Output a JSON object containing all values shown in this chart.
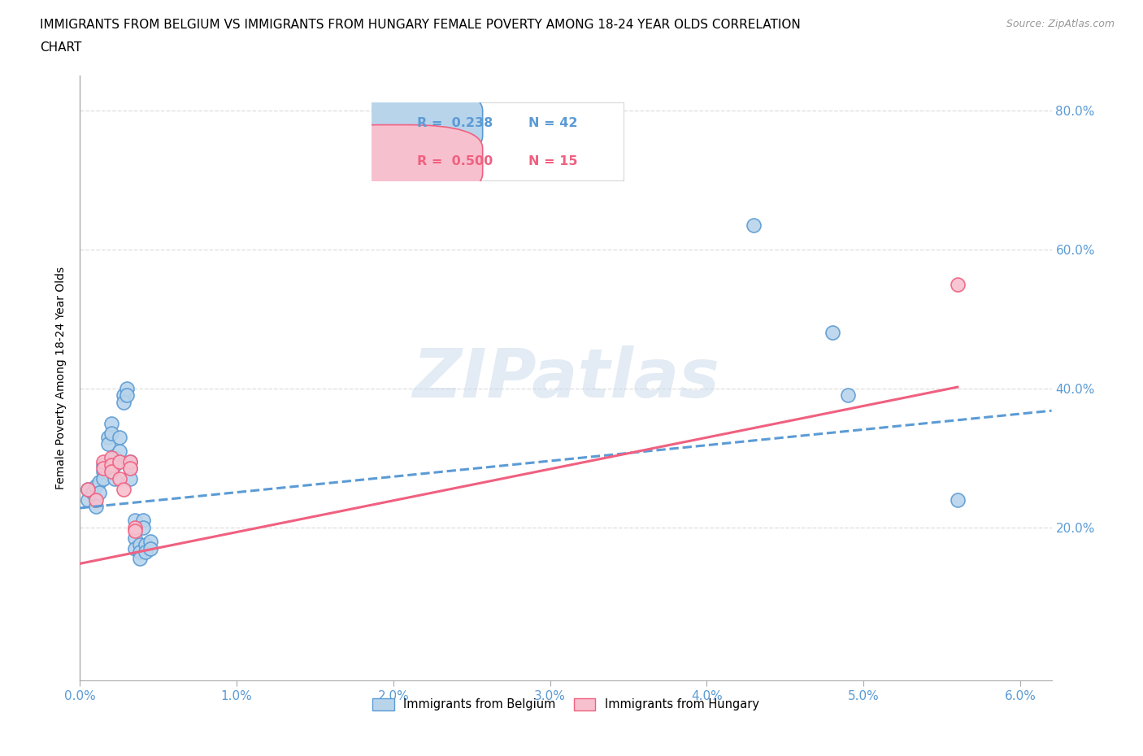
{
  "title_line1": "IMMIGRANTS FROM BELGIUM VS IMMIGRANTS FROM HUNGARY FEMALE POVERTY AMONG 18-24 YEAR OLDS CORRELATION",
  "title_line2": "CHART",
  "source": "Source: ZipAtlas.com",
  "xlabel_ticks": [
    "0.0%",
    "1.0%",
    "2.0%",
    "3.0%",
    "4.0%",
    "5.0%",
    "6.0%"
  ],
  "ylabel_ticks_right": [
    "20.0%",
    "40.0%",
    "60.0%",
    "80.0%"
  ],
  "ylabel_label": "Female Poverty Among 18-24 Year Olds",
  "xlim": [
    0.0,
    0.062
  ],
  "ylim": [
    -0.02,
    0.85
  ],
  "watermark": "ZIPatlas",
  "legend_belgium": "Immigrants from Belgium",
  "legend_hungary": "Immigrants from Hungary",
  "R_belgium": "0.238",
  "N_belgium": "42",
  "R_hungary": "0.500",
  "N_hungary": "15",
  "belgium_color": "#b8d4eb",
  "hungary_color": "#f7c0ce",
  "belgium_edge_color": "#5b9bd5",
  "hungary_edge_color": "#f06080",
  "belgium_line_color": "#5b9bd5",
  "hungary_line_color": "#f06080",
  "belgium_scatter": [
    [
      0.0005,
      0.255
    ],
    [
      0.0005,
      0.24
    ],
    [
      0.0008,
      0.25
    ],
    [
      0.001,
      0.23
    ],
    [
      0.001,
      0.26
    ],
    [
      0.0012,
      0.265
    ],
    [
      0.0012,
      0.25
    ],
    [
      0.0015,
      0.29
    ],
    [
      0.0015,
      0.28
    ],
    [
      0.0015,
      0.27
    ],
    [
      0.0018,
      0.33
    ],
    [
      0.0018,
      0.32
    ],
    [
      0.002,
      0.35
    ],
    [
      0.002,
      0.335
    ],
    [
      0.0022,
      0.3
    ],
    [
      0.0022,
      0.29
    ],
    [
      0.0022,
      0.27
    ],
    [
      0.0025,
      0.33
    ],
    [
      0.0025,
      0.31
    ],
    [
      0.0028,
      0.39
    ],
    [
      0.0028,
      0.38
    ],
    [
      0.003,
      0.4
    ],
    [
      0.003,
      0.39
    ],
    [
      0.0032,
      0.295
    ],
    [
      0.0032,
      0.285
    ],
    [
      0.0032,
      0.27
    ],
    [
      0.0035,
      0.21
    ],
    [
      0.0035,
      0.185
    ],
    [
      0.0035,
      0.17
    ],
    [
      0.0038,
      0.175
    ],
    [
      0.0038,
      0.165
    ],
    [
      0.0038,
      0.155
    ],
    [
      0.004,
      0.21
    ],
    [
      0.004,
      0.2
    ],
    [
      0.0042,
      0.175
    ],
    [
      0.0042,
      0.165
    ],
    [
      0.0045,
      0.18
    ],
    [
      0.0045,
      0.17
    ],
    [
      0.043,
      0.635
    ],
    [
      0.048,
      0.48
    ],
    [
      0.049,
      0.39
    ],
    [
      0.056,
      0.24
    ]
  ],
  "hungary_scatter": [
    [
      0.0005,
      0.255
    ],
    [
      0.001,
      0.24
    ],
    [
      0.0015,
      0.295
    ],
    [
      0.0015,
      0.285
    ],
    [
      0.002,
      0.3
    ],
    [
      0.002,
      0.29
    ],
    [
      0.002,
      0.28
    ],
    [
      0.0025,
      0.295
    ],
    [
      0.0025,
      0.27
    ],
    [
      0.0028,
      0.255
    ],
    [
      0.0032,
      0.295
    ],
    [
      0.0032,
      0.285
    ],
    [
      0.0035,
      0.2
    ],
    [
      0.0035,
      0.195
    ],
    [
      0.056,
      0.55
    ]
  ],
  "belgium_trend_x": [
    0.0,
    0.062
  ],
  "belgium_trend_y": [
    0.228,
    0.368
  ],
  "hungary_trend_x": [
    0.0,
    0.056
  ],
  "hungary_trend_y": [
    0.148,
    0.402
  ],
  "grid_color": "#dddddd",
  "grid_yticks": [
    0.0,
    0.2,
    0.4,
    0.6,
    0.8
  ]
}
